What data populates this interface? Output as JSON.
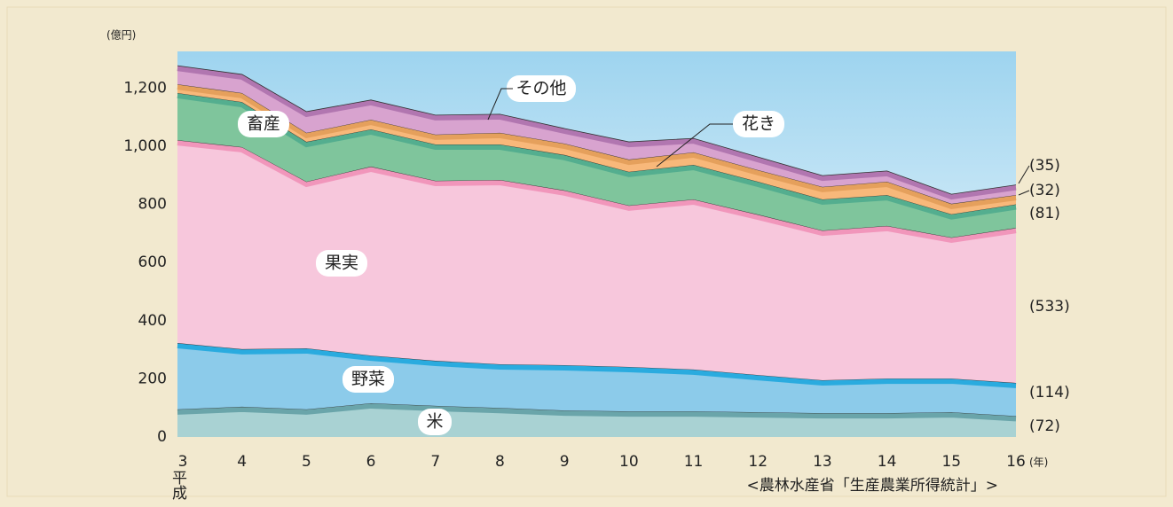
{
  "chart_data": {
    "type": "stacked-area",
    "y_unit": "(億円)",
    "x_unit": "(年)",
    "era_label": "平成",
    "source": "<農林水産省「生産農業所得統計」>",
    "categories": [
      "3",
      "4",
      "5",
      "6",
      "7",
      "8",
      "9",
      "10",
      "11",
      "12",
      "13",
      "14",
      "15",
      "16"
    ],
    "ylim": [
      0,
      1320
    ],
    "yticks": [
      0,
      200,
      400,
      600,
      800,
      {
        "value": 1000,
        "label": "1,000"
      },
      {
        "value": 1200,
        "label": "1,200"
      }
    ],
    "series": [
      {
        "name": "米",
        "color": "#a9d2d3",
        "edge": "#5a9aa0",
        "values": [
          95,
          104,
          95,
          116,
          107,
          100,
          91,
          88,
          88,
          85,
          82,
          82,
          85,
          72
        ],
        "value_labels": [
          null,
          null,
          null,
          null,
          null,
          null,
          null,
          null,
          null,
          null,
          null,
          null,
          null,
          "(72)"
        ]
      },
      {
        "name": "野菜",
        "color": "#8ccbea",
        "edge": "#12a3dc",
        "values": [
          228,
          198,
          210,
          164,
          155,
          150,
          156,
          153,
          144,
          128,
          113,
          119,
          116,
          114
        ],
        "value_labels": [
          null,
          null,
          null,
          null,
          null,
          null,
          null,
          null,
          null,
          null,
          null,
          null,
          null,
          "(114)"
        ]
      },
      {
        "name": "果実",
        "color": "#f7c7dc",
        "edge": "#ef8ab3",
        "values": [
          698,
          695,
          573,
          650,
          619,
          634,
          601,
          555,
          585,
          552,
          515,
          525,
          485,
          533
        ],
        "value_labels": [
          null,
          null,
          null,
          null,
          null,
          null,
          null,
          null,
          null,
          null,
          null,
          null,
          null,
          "(533)"
        ]
      },
      {
        "name": "畜産",
        "color": "#7fc59c",
        "edge": "#4aa88c",
        "values": [
          162,
          155,
          137,
          128,
          125,
          122,
          122,
          116,
          119,
          113,
          107,
          106,
          80,
          81
        ],
        "value_labels": [
          null,
          null,
          null,
          null,
          null,
          null,
          null,
          null,
          null,
          null,
          null,
          null,
          null,
          "(81)"
        ]
      },
      {
        "name": "花き",
        "color": "#f8b87a",
        "edge": "#e09a55",
        "values": [
          30,
          31,
          31,
          33,
          34,
          40,
          39,
          42,
          43,
          40,
          43,
          46,
          36,
          32
        ],
        "value_labels": [
          null,
          null,
          null,
          null,
          null,
          null,
          null,
          null,
          null,
          null,
          null,
          null,
          null,
          "(32)"
        ]
      },
      {
        "name": "その他",
        "color": "#d8a3cf",
        "edge": "#a86aa8",
        "values": [
          64,
          64,
          73,
          68,
          67,
          64,
          52,
          61,
          48,
          45,
          39,
          37,
          33,
          35
        ],
        "value_labels": [
          null,
          null,
          null,
          null,
          null,
          null,
          null,
          null,
          null,
          null,
          null,
          null,
          null,
          "(35)"
        ]
      }
    ]
  }
}
